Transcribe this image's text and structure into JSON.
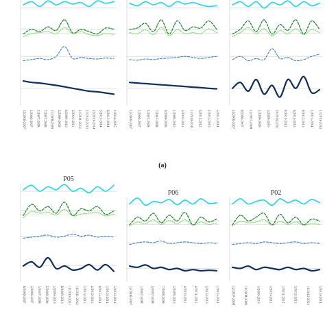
{
  "figure": {
    "label": "(a)",
    "series_colors": {
      "s1": "#33d6e6",
      "s2": "#1e8a2e",
      "s3": "#7fd66b",
      "s4": "#3b82c8",
      "s5": "#0f2e5c"
    },
    "panels": [
      {
        "id": "top-1",
        "title": "",
        "ticks": [
          "12/2006-2007",
          "1/2006-2007",
          "5/2007-2008",
          "7/2007-2008",
          "11/2008-2009",
          "3/2008-2009",
          "6/2009-2010",
          "3/2010-2011",
          "11/2011-2012",
          "11/2012-2013",
          "12/2013-2014",
          "3/2013-2014",
          "6/2013-2014",
          "1/2014-2015"
        ]
      },
      {
        "id": "top-2",
        "title": "",
        "ticks": [
          "12/2006-2007",
          "1/2006-2007",
          "5/2007-2008",
          "7/2007-2008",
          "9/2008-2009",
          "1/2009-2010",
          "3/2010-2011",
          "11/2010-2011",
          "5/2011-2012",
          "2/2012-2013",
          "5/2013-2014"
        ]
      },
      {
        "id": "top-3",
        "title": "",
        "ticks": [
          "12/2006-2007",
          "8/2006-2007",
          "12/2007-2008",
          "1/2008-2009",
          "3/2009-2010",
          "10/2010-2011",
          "8/2011-2012",
          "6/2012-2013",
          "8/2012-2013",
          "1/2013-2014",
          "11/2013-2014"
        ]
      },
      {
        "id": "bottom-1",
        "title": "P05",
        "ticks": [
          "8/2006-2007",
          "3/2006-2007",
          "3/2007-2008",
          "5/2008-2009",
          "3/2009-2010",
          "8/2009-2010",
          "11/2010-2011",
          "11/2011-2012",
          "1/2012-2013",
          "4/2012-2013",
          "8/2013-2014",
          "1/2013-2014",
          "3/2013-2014"
        ]
      },
      {
        "id": "bottom-2",
        "title": "P06",
        "ticks": [
          "12/2006-2007",
          "1/2007-2008",
          "5/2007-2008",
          "7/2008-2009",
          "3/2009-2010",
          "4/2010-2011",
          "4/2011-2012",
          "5/2012-2013",
          "1/2013-2014"
        ]
      },
      {
        "id": "bottom-3",
        "title": "P02",
        "ticks": [
          "12/2007-2008",
          "11/2008-2009",
          "3/2009-2010",
          "3/2010-2011",
          "1/2011-2012",
          "3/2012-2013",
          "11/2012-2013",
          "3/2013-2014"
        ]
      }
    ]
  },
  "chart_data": [
    {
      "type": "line",
      "panel": "top-1",
      "series": [
        {
          "values": [
            0.7,
            0.9,
            0.6,
            0.95,
            0.7,
            0.9,
            0.75,
            0.85,
            0.6,
            0.95,
            0.8,
            0.9
          ]
        },
        {
          "values": [
            0.3,
            0.5,
            0.4,
            0.6,
            0.45,
            0.9,
            0.35,
            0.5,
            0.4,
            0.3,
            0.55,
            0.5
          ]
        },
        {
          "values": [
            0.35,
            0.5,
            0.55,
            0.6,
            0.5,
            0.8,
            0.5,
            0.6,
            0.45,
            0.4,
            0.5,
            0.45
          ]
        },
        {
          "values": [
            0.3,
            0.35,
            0.4,
            0.35,
            0.5,
            0.95,
            0.4,
            0.45,
            0.4,
            0.38,
            0.42,
            0.4
          ]
        },
        {
          "values": [
            0.75,
            0.7,
            0.68,
            0.64,
            0.6,
            0.55,
            0.5,
            0.45,
            0.4,
            0.38,
            0.34,
            0.3
          ]
        }
      ]
    },
    {
      "type": "line",
      "panel": "top-2",
      "series": [
        {
          "values": [
            0.8,
            0.65,
            0.9,
            0.7,
            0.85,
            0.6,
            0.9,
            0.75,
            0.85,
            0.7,
            0.6,
            0.65
          ]
        },
        {
          "values": [
            0.5,
            0.55,
            0.75,
            0.4,
            0.9,
            0.3,
            0.85,
            0.45,
            0.6,
            0.55,
            0.85,
            0.5
          ]
        },
        {
          "values": [
            0.55,
            0.5,
            0.7,
            0.45,
            0.8,
            0.4,
            0.7,
            0.5,
            0.55,
            0.5,
            0.75,
            0.55
          ]
        },
        {
          "values": [
            0.35,
            0.32,
            0.38,
            0.35,
            0.4,
            0.42,
            0.45,
            0.5,
            0.45,
            0.4,
            0.45,
            0.5
          ]
        },
        {
          "values": [
            0.7,
            0.68,
            0.66,
            0.64,
            0.62,
            0.6,
            0.58,
            0.56,
            0.54,
            0.52,
            0.5,
            0.48
          ]
        }
      ]
    },
    {
      "type": "line",
      "panel": "top-3",
      "series": [
        {
          "values": [
            0.7,
            0.9,
            0.6,
            0.9,
            0.5,
            0.85,
            0.7,
            0.95,
            0.6,
            0.9,
            0.65,
            0.8
          ]
        },
        {
          "values": [
            0.3,
            0.5,
            0.85,
            0.4,
            0.9,
            0.3,
            0.7,
            0.45,
            0.9,
            0.3,
            0.85,
            0.5
          ]
        },
        {
          "values": [
            0.35,
            0.55,
            0.8,
            0.5,
            0.75,
            0.4,
            0.65,
            0.5,
            0.75,
            0.45,
            0.7,
            0.55
          ]
        },
        {
          "values": [
            0.35,
            0.5,
            0.3,
            0.4,
            0.35,
            0.85,
            0.4,
            0.45,
            0.3,
            0.35,
            0.5,
            0.6
          ]
        },
        {
          "values": [
            0.5,
            0.7,
            0.4,
            0.8,
            0.3,
            0.6,
            0.2,
            0.8,
            0.5,
            0.9,
            0.35,
            0.45
          ]
        }
      ]
    },
    {
      "type": "line",
      "panel": "bottom-1",
      "series": [
        {
          "values": [
            0.6,
            0.9,
            0.5,
            0.8,
            0.6,
            0.95,
            0.5,
            0.7,
            0.4,
            0.8,
            0.5,
            0.9
          ]
        },
        {
          "values": [
            0.3,
            0.8,
            0.5,
            0.7,
            0.4,
            0.9,
            0.3,
            0.6,
            0.5,
            0.7,
            0.35,
            0.5
          ]
        },
        {
          "values": [
            0.35,
            0.7,
            0.6,
            0.65,
            0.5,
            0.8,
            0.45,
            0.55,
            0.6,
            0.65,
            0.45,
            0.55
          ]
        },
        {
          "values": [
            0.4,
            0.45,
            0.5,
            0.55,
            0.45,
            0.5,
            0.6,
            0.5,
            0.55,
            0.45,
            0.5,
            0.45
          ]
        },
        {
          "values": [
            0.5,
            0.65,
            0.45,
            0.8,
            0.4,
            0.5,
            0.35,
            0.4,
            0.55,
            0.35,
            0.55,
            0.3
          ]
        }
      ]
    },
    {
      "type": "line",
      "panel": "bottom-2",
      "series": [
        {
          "values": [
            0.5,
            0.95,
            0.4,
            0.7,
            0.6,
            0.85,
            0.45,
            0.8,
            0.5,
            0.9,
            0.55,
            0.6
          ]
        },
        {
          "values": [
            0.3,
            0.7,
            0.5,
            0.9,
            0.4,
            0.8,
            0.5,
            0.95,
            0.3,
            0.7,
            0.45,
            0.6
          ]
        },
        {
          "values": [
            0.4,
            0.65,
            0.55,
            0.8,
            0.5,
            0.75,
            0.55,
            0.8,
            0.45,
            0.65,
            0.5,
            0.6
          ]
        },
        {
          "values": [
            0.4,
            0.5,
            0.55,
            0.5,
            0.6,
            0.45,
            0.5,
            0.55,
            0.5,
            0.45,
            0.5,
            0.45
          ]
        },
        {
          "values": [
            0.6,
            0.55,
            0.65,
            0.5,
            0.55,
            0.45,
            0.5,
            0.4,
            0.45,
            0.4,
            0.42,
            0.4
          ]
        }
      ]
    },
    {
      "type": "line",
      "panel": "bottom-3",
      "series": [
        {
          "values": [
            0.5,
            0.9,
            0.5,
            0.7,
            0.8,
            0.4,
            0.9,
            0.6,
            0.8,
            0.5,
            0.85,
            0.6
          ]
        },
        {
          "values": [
            0.3,
            0.8,
            0.5,
            0.7,
            0.9,
            0.3,
            0.85,
            0.4,
            0.7,
            0.3,
            0.6,
            0.5
          ]
        },
        {
          "values": [
            0.4,
            0.7,
            0.6,
            0.65,
            0.8,
            0.45,
            0.7,
            0.5,
            0.65,
            0.45,
            0.55,
            0.5
          ]
        },
        {
          "values": [
            0.4,
            0.45,
            0.5,
            0.45,
            0.55,
            0.5,
            0.45,
            0.5,
            0.55,
            0.45,
            0.5,
            0.45
          ]
        },
        {
          "values": [
            0.55,
            0.5,
            0.6,
            0.45,
            0.55,
            0.5,
            0.45,
            0.55,
            0.45,
            0.5,
            0.4,
            0.45
          ]
        }
      ]
    }
  ]
}
